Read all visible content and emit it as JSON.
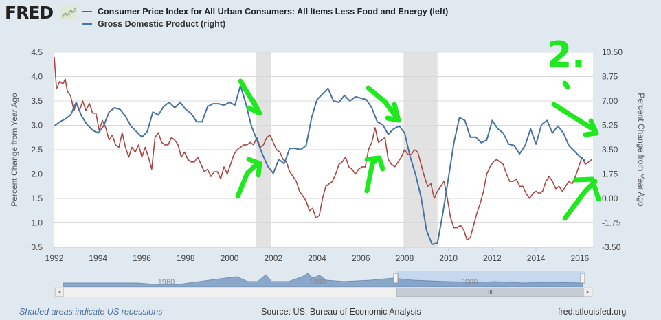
{
  "header": {
    "logo_text": "FRED",
    "logo_icon": "line-chart-icon",
    "legend": [
      {
        "label": "Consumer Price Index for All Urban Consumers: All Items Less Food and Energy (left)",
        "color": "#aa4643"
      },
      {
        "label": "Gross Domestic Product (right)",
        "color": "#4572a7"
      }
    ]
  },
  "chart_data": {
    "type": "line",
    "title": "",
    "xlabel": "",
    "ylabel_left": "Percent Change from Year Ago",
    "ylabel_right": "Percent Change from Year Ago",
    "x_range": [
      1992,
      2016.6
    ],
    "ylim_left": [
      0.5,
      4.5
    ],
    "ylim_right": [
      -3.5,
      10.5
    ],
    "x_ticks": [
      "1992",
      "1994",
      "1996",
      "1998",
      "2000",
      "2002",
      "2004",
      "2006",
      "2008",
      "2010",
      "2012",
      "2014",
      "2016"
    ],
    "y_ticks_left": [
      "4.5",
      "4.0",
      "3.5",
      "3.0",
      "2.5",
      "2.0",
      "1.5",
      "1.0",
      "0.5"
    ],
    "y_ticks_right": [
      "10.50",
      "8.75",
      "7.00",
      "5.25",
      "3.50",
      "1.75",
      "0.00",
      "-1.75",
      "-3.50"
    ],
    "grid": true,
    "legend_position": "top",
    "recessions": [
      [
        2001.2,
        2001.9
      ],
      [
        2007.95,
        2009.5
      ]
    ],
    "series": [
      {
        "name": "Consumer Price Index for All Urban Consumers: All Items Less Food and Energy",
        "axis": "left",
        "color": "#aa4643",
        "x": [
          1992.0,
          1992.1,
          1992.25,
          1992.4,
          1992.5,
          1992.6,
          1992.75,
          1992.9,
          1993.0,
          1993.15,
          1993.3,
          1993.45,
          1993.6,
          1993.75,
          1993.9,
          1994.05,
          1994.2,
          1994.35,
          1994.5,
          1994.65,
          1994.8,
          1994.95,
          1995.1,
          1995.25,
          1995.4,
          1995.55,
          1995.7,
          1995.85,
          1996.0,
          1996.15,
          1996.3,
          1996.45,
          1996.6,
          1996.75,
          1996.9,
          1997.05,
          1997.2,
          1997.35,
          1997.5,
          1997.65,
          1997.8,
          1997.95,
          1998.1,
          1998.25,
          1998.4,
          1998.55,
          1998.7,
          1998.85,
          1999.0,
          1999.15,
          1999.3,
          1999.45,
          1999.6,
          1999.75,
          1999.9,
          2000.05,
          2000.2,
          2000.35,
          2000.5,
          2000.65,
          2000.8,
          2000.95,
          2001.1,
          2001.25,
          2001.4,
          2001.55,
          2001.7,
          2001.85,
          2002.0,
          2002.15,
          2002.3,
          2002.45,
          2002.6,
          2002.75,
          2002.9,
          2003.05,
          2003.2,
          2003.35,
          2003.5,
          2003.65,
          2003.8,
          2003.95,
          2004.1,
          2004.25,
          2004.4,
          2004.55,
          2004.7,
          2004.85,
          2005.0,
          2005.15,
          2005.3,
          2005.45,
          2005.6,
          2005.75,
          2005.9,
          2006.05,
          2006.2,
          2006.35,
          2006.5,
          2006.65,
          2006.8,
          2006.95,
          2007.1,
          2007.25,
          2007.4,
          2007.55,
          2007.7,
          2007.85,
          2008.0,
          2008.15,
          2008.3,
          2008.45,
          2008.6,
          2008.75,
          2008.9,
          2009.05,
          2009.2,
          2009.35,
          2009.5,
          2009.65,
          2009.8,
          2009.95,
          2010.1,
          2010.25,
          2010.4,
          2010.55,
          2010.7,
          2010.85,
          2011.0,
          2011.15,
          2011.3,
          2011.45,
          2011.6,
          2011.75,
          2011.9,
          2012.05,
          2012.2,
          2012.35,
          2012.5,
          2012.65,
          2012.8,
          2012.95,
          2013.1,
          2013.25,
          2013.4,
          2013.55,
          2013.7,
          2013.85,
          2014.0,
          2014.15,
          2014.3,
          2014.45,
          2014.6,
          2014.75,
          2014.9,
          2015.05,
          2015.2,
          2015.35,
          2015.5,
          2015.65,
          2015.8,
          2015.95,
          2016.1,
          2016.25,
          2016.4,
          2016.55
        ],
        "y": [
          4.4,
          3.75,
          3.9,
          3.85,
          3.95,
          3.7,
          3.6,
          3.3,
          3.45,
          3.3,
          3.5,
          3.3,
          3.45,
          3.25,
          3.25,
          2.9,
          3.1,
          2.95,
          2.7,
          2.8,
          2.6,
          2.55,
          2.85,
          2.55,
          2.35,
          2.55,
          2.45,
          2.6,
          2.35,
          2.55,
          2.35,
          2.1,
          2.75,
          2.85,
          2.65,
          2.6,
          2.6,
          2.75,
          2.7,
          2.6,
          2.35,
          2.45,
          2.3,
          2.25,
          2.25,
          2.35,
          2.2,
          2.05,
          2.1,
          1.95,
          2.05,
          2.05,
          1.9,
          2.15,
          2.0,
          2.2,
          2.4,
          2.5,
          2.55,
          2.6,
          2.6,
          2.65,
          2.6,
          2.75,
          2.55,
          2.6,
          2.75,
          2.8,
          2.65,
          2.5,
          2.45,
          2.3,
          2.25,
          2.05,
          1.95,
          1.85,
          1.65,
          1.55,
          1.45,
          1.25,
          1.3,
          1.1,
          1.15,
          1.5,
          1.75,
          1.8,
          1.85,
          2.0,
          2.2,
          2.25,
          2.35,
          2.15,
          2.1,
          2.0,
          2.1,
          2.15,
          2.15,
          2.5,
          2.65,
          2.95,
          2.65,
          2.7,
          2.75,
          2.3,
          2.2,
          2.15,
          2.25,
          2.35,
          2.5,
          2.4,
          2.4,
          2.5,
          2.45,
          2.2,
          1.95,
          1.75,
          1.8,
          1.5,
          1.65,
          1.75,
          1.85,
          1.5,
          1.1,
          0.9,
          0.9,
          0.95,
          0.85,
          0.65,
          0.7,
          0.95,
          1.2,
          1.4,
          1.65,
          2.0,
          2.15,
          2.25,
          2.3,
          2.25,
          2.2,
          2.0,
          1.85,
          1.85,
          1.9,
          1.75,
          1.75,
          1.6,
          1.5,
          1.6,
          1.65,
          1.6,
          1.65,
          1.85,
          1.95,
          1.85,
          1.7,
          1.75,
          1.65,
          1.75,
          1.85,
          1.8,
          1.95,
          2.15,
          2.35,
          2.2,
          2.25,
          2.3
        ]
      },
      {
        "name": "Gross Domestic Product",
        "axis": "right",
        "color": "#4572a7",
        "x": [
          1992.0,
          1992.25,
          1992.5,
          1992.75,
          1993.0,
          1993.25,
          1993.5,
          1993.75,
          1994.0,
          1994.25,
          1994.5,
          1994.75,
          1995.0,
          1995.25,
          1995.5,
          1995.75,
          1996.0,
          1996.25,
          1996.5,
          1996.75,
          1997.0,
          1997.25,
          1997.5,
          1997.75,
          1998.0,
          1998.25,
          1998.5,
          1998.75,
          1999.0,
          1999.25,
          1999.5,
          1999.75,
          2000.0,
          2000.25,
          2000.5,
          2000.75,
          2001.0,
          2001.25,
          2001.5,
          2001.75,
          2002.0,
          2002.25,
          2002.5,
          2002.75,
          2003.0,
          2003.25,
          2003.5,
          2003.75,
          2004.0,
          2004.25,
          2004.5,
          2004.75,
          2005.0,
          2005.25,
          2005.5,
          2005.75,
          2006.0,
          2006.25,
          2006.5,
          2006.75,
          2007.0,
          2007.25,
          2007.5,
          2007.75,
          2008.0,
          2008.25,
          2008.5,
          2008.75,
          2009.0,
          2009.25,
          2009.5,
          2009.75,
          2010.0,
          2010.25,
          2010.5,
          2010.75,
          2011.0,
          2011.25,
          2011.5,
          2011.75,
          2012.0,
          2012.25,
          2012.5,
          2012.75,
          2013.0,
          2013.25,
          2013.5,
          2013.75,
          2014.0,
          2014.25,
          2014.5,
          2014.75,
          2015.0,
          2015.25,
          2015.5,
          2015.75,
          2016.0,
          2016.25
        ],
        "y": [
          5.2,
          5.5,
          5.7,
          6.0,
          6.9,
          5.9,
          5.3,
          4.9,
          4.7,
          5.2,
          6.2,
          6.5,
          6.4,
          5.9,
          5.2,
          4.8,
          4.4,
          4.8,
          6.2,
          6.0,
          6.6,
          6.9,
          6.5,
          6.9,
          6.4,
          6.1,
          5.5,
          5.5,
          6.6,
          6.8,
          6.8,
          6.7,
          6.9,
          6.7,
          8.1,
          6.8,
          5.2,
          4.2,
          3.2,
          2.3,
          1.8,
          2.8,
          2.5,
          3.6,
          3.6,
          3.5,
          3.8,
          5.8,
          7.1,
          7.5,
          7.9,
          7.0,
          6.9,
          7.4,
          7.0,
          7.3,
          7.2,
          7.1,
          6.5,
          5.5,
          5.3,
          4.6,
          5.0,
          5.2,
          4.7,
          3.0,
          1.7,
          0.1,
          -2.3,
          -3.3,
          -3.2,
          -1.0,
          1.5,
          4.0,
          5.8,
          5.6,
          4.4,
          4.4,
          4.0,
          4.2,
          5.6,
          5.0,
          4.7,
          3.9,
          3.8,
          3.2,
          3.8,
          5.0,
          3.9,
          5.3,
          5.6,
          4.7,
          5.2,
          4.7,
          3.8,
          3.4,
          3.0,
          2.7
        ]
      }
    ],
    "annotations": [
      {
        "type": "handwritten-text",
        "text": "2.",
        "color": "#1ee81e"
      },
      {
        "type": "arrow-down",
        "near": 2001.3,
        "color": "#1ee81e"
      },
      {
        "type": "arrow-up",
        "near": 2001.0,
        "color": "#1ee81e"
      },
      {
        "type": "arrow-down",
        "near": 2007.6,
        "color": "#1ee81e"
      },
      {
        "type": "arrow-up",
        "near": 2006.9,
        "color": "#1ee81e"
      },
      {
        "type": "arrow-down",
        "near": 2016.6,
        "color": "#1ee81e"
      },
      {
        "type": "arrow-up",
        "near": 2016.2,
        "color": "#1ee81e"
      }
    ]
  },
  "navigator": {
    "labels": [
      "1960",
      "1980",
      "2000"
    ],
    "scroll_left_icon": "arrow-left-icon",
    "scroll_right_icon": "arrow-right-icon",
    "grip_icon": "grip-icon",
    "grip_text": "III"
  },
  "footer": {
    "recession_note": "Shaded areas indicate US recessions",
    "source": "Source: US. Bureau of Economic Analysis",
    "site": "fred.stlouisfed.org"
  }
}
